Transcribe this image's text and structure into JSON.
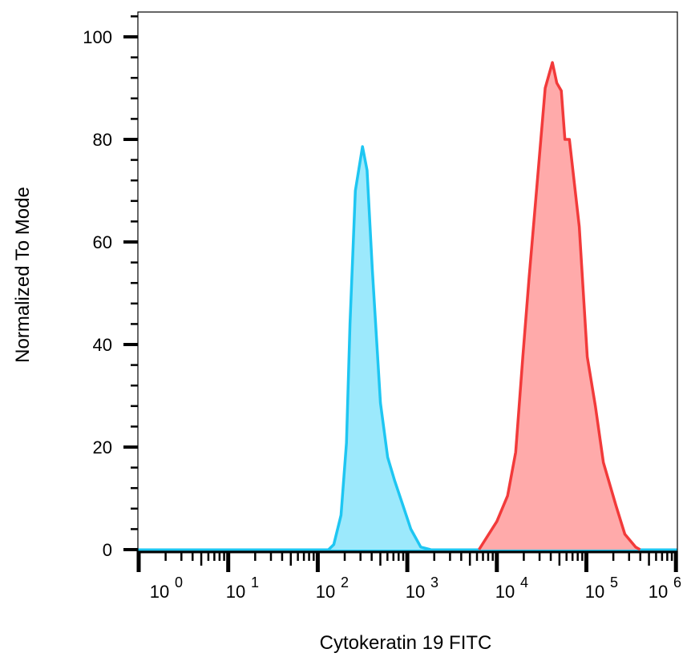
{
  "chart_data": {
    "type": "area",
    "xlabel": "Cytokeratin 19 FITC",
    "ylabel": "Normalized To Mode",
    "x_scale": "log",
    "xlim": [
      1,
      1000000
    ],
    "ylim": [
      0,
      105
    ],
    "x_tick_labels": [
      {
        "base": "10",
        "exp": "0"
      },
      {
        "base": "10",
        "exp": "1"
      },
      {
        "base": "10",
        "exp": "2"
      },
      {
        "base": "10",
        "exp": "3"
      },
      {
        "base": "10",
        "exp": "4"
      },
      {
        "base": "10",
        "exp": "5"
      },
      {
        "base": "10",
        "exp": "6"
      }
    ],
    "y_ticks": [
      0,
      20,
      40,
      60,
      80,
      100
    ],
    "y_tick_labels": [
      "0",
      "20",
      "40",
      "60",
      "80",
      "100"
    ],
    "grid": false,
    "series": [
      {
        "color_line": "#1ec6f2",
        "color_fill": "#9ce9fc",
        "x": [
          132,
          151,
          182,
          209,
          229,
          263,
          316,
          355,
          407,
          501,
          603,
          724,
          891,
          1096,
          1413,
          1820
        ],
        "y": [
          0,
          1,
          6.7,
          20.8,
          44,
          70,
          78.6,
          74,
          54.5,
          28.6,
          18,
          13.4,
          8.7,
          4,
          0.5,
          0
        ]
      },
      {
        "color_line": "#f23a3a",
        "color_fill": "#ffaaaa",
        "x": [
          6310,
          10000,
          13183,
          16218,
          19498,
          22909,
          28184,
          34674,
          41687,
          46774,
          52481,
          57544,
          64565,
          83176,
          102329,
          125893,
          154882,
          213796,
          269153,
          354813,
          398107
        ],
        "y": [
          0,
          5.5,
          10.5,
          19,
          37.6,
          53,
          71.5,
          90,
          95,
          91,
          89.5,
          80,
          80,
          63,
          37.6,
          28,
          17,
          8.6,
          3,
          0.5,
          0
        ]
      }
    ]
  }
}
